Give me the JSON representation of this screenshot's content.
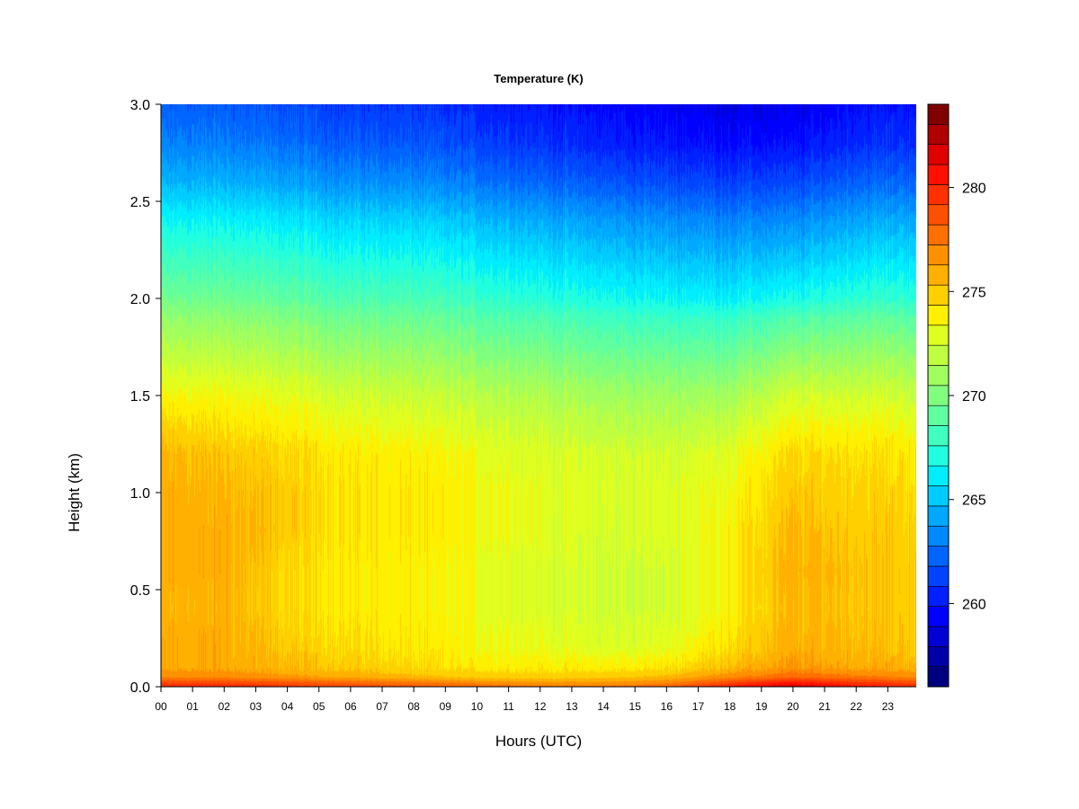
{
  "chart_data": {
    "type": "heatmap",
    "title": "Temperature (K)",
    "xlabel": "Hours (UTC)",
    "ylabel": "Height (km)",
    "x_tick_labels": [
      "00",
      "01",
      "02",
      "03",
      "04",
      "05",
      "06",
      "07",
      "08",
      "09",
      "10",
      "11",
      "12",
      "13",
      "14",
      "15",
      "16",
      "17",
      "18",
      "19",
      "20",
      "21",
      "22",
      "23"
    ],
    "x_ticks": [
      0,
      1,
      2,
      3,
      4,
      5,
      6,
      7,
      8,
      9,
      10,
      11,
      12,
      13,
      14,
      15,
      16,
      17,
      18,
      19,
      20,
      21,
      22,
      23
    ],
    "xlim": [
      0,
      23.9
    ],
    "y_ticks": [
      0.0,
      0.5,
      1.0,
      1.5,
      2.0,
      2.5,
      3.0
    ],
    "y_tick_labels": [
      "0.0",
      "0.5",
      "1.0",
      "1.5",
      "2.0",
      "2.5",
      "3.0"
    ],
    "ylim": [
      0,
      3.0
    ],
    "colorbar": {
      "range": [
        256,
        284
      ],
      "step": 1,
      "ticks": [
        260,
        265,
        270,
        275,
        280
      ],
      "tick_labels": [
        "260",
        "265",
        "270",
        "275",
        "280"
      ],
      "colors": [
        "#00007F",
        "#0000A8",
        "#0000D4",
        "#0000FF",
        "#0020FF",
        "#0044FF",
        "#0064FF",
        "#0088FF",
        "#00A8FF",
        "#00CCFF",
        "#00ECFF",
        "#20FFDF",
        "#40FFBF",
        "#60FF9F",
        "#80FF7F",
        "#A0FF5F",
        "#BFFF40",
        "#DFFF20",
        "#FFF000",
        "#FFD000",
        "#FFB000",
        "#FF9000",
        "#FF7000",
        "#FF5000",
        "#FF3000",
        "#FF1000",
        "#E00000",
        "#B00000",
        "#800000"
      ]
    },
    "height_profile_km": [
      0.0,
      0.02,
      0.05,
      0.1,
      0.2,
      0.4,
      0.6,
      0.8,
      1.0,
      1.2,
      1.3,
      1.5,
      1.7,
      1.9,
      2.0,
      2.2,
      2.4,
      2.6,
      2.8,
      3.0
    ],
    "profiles": [
      {
        "hour": 0,
        "temps_K": [
          280,
          279,
          277,
          276,
          276,
          275.5,
          275.8,
          275.8,
          275.8,
          275.5,
          275,
          273.5,
          272,
          270.5,
          269.5,
          268,
          266.5,
          264.5,
          263,
          262
        ]
      },
      {
        "hour": 2,
        "temps_K": [
          280,
          279,
          277,
          276,
          276,
          275.8,
          275.9,
          275.9,
          275.6,
          275.2,
          274.5,
          273.5,
          272,
          270.5,
          269.5,
          268,
          266.5,
          264.5,
          263,
          262
        ]
      },
      {
        "hour": 4,
        "temps_K": [
          279.5,
          278.5,
          276.5,
          275.5,
          275,
          274.5,
          274.5,
          275,
          275,
          274.5,
          274,
          273,
          271.5,
          270,
          269,
          267.5,
          266,
          264,
          262.5,
          261.5
        ]
      },
      {
        "hour": 6,
        "temps_K": [
          279,
          278,
          276,
          275,
          274.5,
          274,
          274,
          274.2,
          274.2,
          274,
          273.5,
          272.5,
          271,
          269.5,
          268.5,
          267,
          265.5,
          263.5,
          262,
          261
        ]
      },
      {
        "hour": 8,
        "temps_K": [
          278.5,
          277.5,
          275.5,
          274.5,
          274,
          273.8,
          273.8,
          274,
          274,
          273.8,
          273.2,
          272.2,
          270.8,
          269.3,
          268.3,
          266.8,
          265.3,
          263.3,
          261.8,
          260.8
        ]
      },
      {
        "hour": 10,
        "temps_K": [
          278,
          277,
          275,
          274,
          273.5,
          273.2,
          273.2,
          273.5,
          273.5,
          273.2,
          272.8,
          271.8,
          270.3,
          268.8,
          267.8,
          266.3,
          264.8,
          262.8,
          261.3,
          260.3
        ]
      },
      {
        "hour": 12,
        "temps_K": [
          277.5,
          276.5,
          274.8,
          274,
          273.2,
          272.8,
          272.8,
          273,
          273,
          272.8,
          272.4,
          271.5,
          270,
          268.5,
          267.3,
          265.8,
          264.3,
          262.3,
          260.8,
          260
        ]
      },
      {
        "hour": 14,
        "temps_K": [
          277.5,
          276.5,
          275,
          273.8,
          272.8,
          272.3,
          272.3,
          272.5,
          272.6,
          272.5,
          272,
          271,
          269.5,
          268,
          266.8,
          265.3,
          263.8,
          261.8,
          260.3,
          259.5
        ]
      },
      {
        "hour": 16,
        "temps_K": [
          278,
          277,
          275.5,
          274.2,
          273,
          272.5,
          272.5,
          272.8,
          272.8,
          272.5,
          272,
          271,
          269.5,
          267.8,
          266.5,
          265,
          263.5,
          261.5,
          260,
          259.2
        ]
      },
      {
        "hour": 18,
        "temps_K": [
          280.5,
          279,
          277,
          275.5,
          274.5,
          273.8,
          273.8,
          273.8,
          273.5,
          273,
          272.5,
          271.2,
          269.5,
          267.8,
          266.3,
          264.8,
          263.2,
          261.2,
          259.7,
          258.8
        ]
      },
      {
        "hour": 20,
        "temps_K": [
          282,
          280.5,
          278,
          276.5,
          275.8,
          275.6,
          275.8,
          275.5,
          275,
          274.5,
          273.8,
          272.5,
          270.5,
          268.5,
          266.8,
          265,
          263.3,
          261.3,
          259.7,
          258.8
        ]
      },
      {
        "hour": 22,
        "temps_K": [
          280.5,
          279.5,
          277.5,
          276,
          275.5,
          275.2,
          275.3,
          275,
          274.8,
          274.3,
          273.8,
          272.5,
          270.8,
          269,
          267.5,
          265.8,
          264.2,
          262.2,
          260.6,
          259.8
        ]
      },
      {
        "hour": 23.9,
        "temps_K": [
          280,
          279,
          277,
          275.8,
          275.2,
          275,
          275,
          274.8,
          274.6,
          274.2,
          273.6,
          272.4,
          270.8,
          269,
          267.6,
          266,
          264.4,
          262.4,
          260.8,
          260
        ]
      }
    ]
  }
}
